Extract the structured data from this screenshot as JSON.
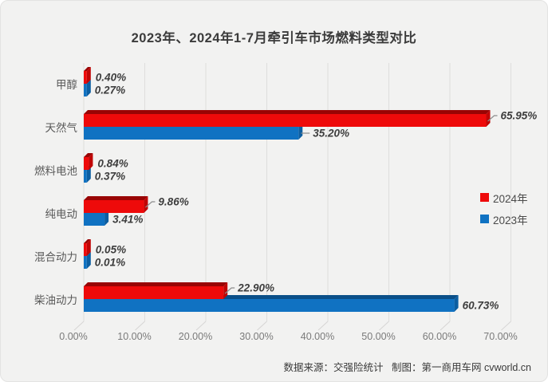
{
  "title": "2023年、2024年1-7月牵引车市场燃料类型对比",
  "legend": [
    {
      "label": "2024年",
      "color": "#ee0a0a"
    },
    {
      "label": "2023年",
      "color": "#1072c2"
    }
  ],
  "footer": {
    "text": "数据来源：交强险统计   制图：第一商用车网 cvworld.cn"
  },
  "chart_data": {
    "type": "bar",
    "orientation": "horizontal",
    "title": "2023年、2024年1-7月牵引车市场燃料类型对比",
    "categories": [
      "甲醇",
      "天然气",
      "燃料电池",
      "纯电动",
      "混合动力",
      "柴油动力"
    ],
    "series": [
      {
        "name": "2024年",
        "color": "#ee0a0a",
        "color_dark": "#990404",
        "color_side": "#c00505",
        "values": [
          0.4,
          65.95,
          0.84,
          9.86,
          0.05,
          22.9
        ],
        "labels": [
          "0.40%",
          "65.95%",
          "0.84%",
          "9.86%",
          "0.05%",
          "22.90%"
        ],
        "callouts": [
          false,
          true,
          false,
          true,
          false,
          true
        ]
      },
      {
        "name": "2023年",
        "color": "#1072c2",
        "color_dark": "#0a4f88",
        "color_side": "#0c5ea1",
        "values": [
          0.27,
          35.2,
          0.37,
          3.41,
          0.01,
          60.73
        ],
        "labels": [
          "0.27%",
          "35.20%",
          "0.37%",
          "3.41%",
          "0.01%",
          "60.73%"
        ],
        "callouts": [
          false,
          true,
          false,
          false,
          false,
          false
        ]
      }
    ],
    "x_ticks": [
      "0.00%",
      "10.00%",
      "20.00%",
      "30.00%",
      "40.00%",
      "50.00%",
      "60.00%",
      "70.00%"
    ],
    "xlim": [
      0,
      70
    ],
    "grid": true,
    "legend_position": "right"
  }
}
